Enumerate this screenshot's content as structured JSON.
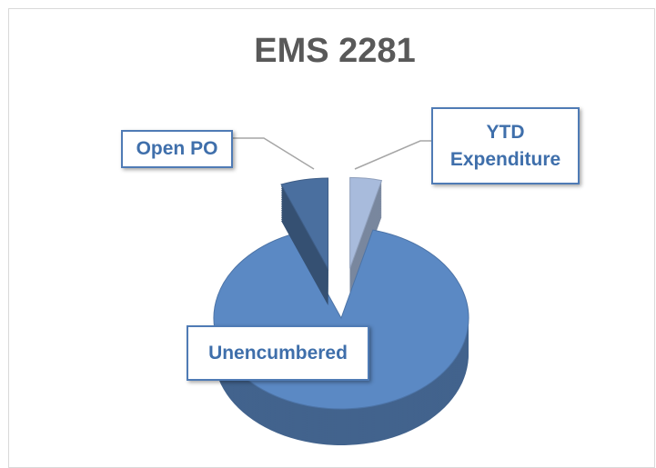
{
  "chart_data": {
    "type": "pie",
    "title": "EMS 2281",
    "categories": [
      "YTD Expenditure",
      "Unencumbered",
      "Open PO"
    ],
    "values": [
      4,
      90,
      6
    ],
    "colors": [
      "#a8bbdc",
      "#5b89c4",
      "#4a6f9f"
    ],
    "explode": [
      true,
      false,
      true
    ]
  }
}
